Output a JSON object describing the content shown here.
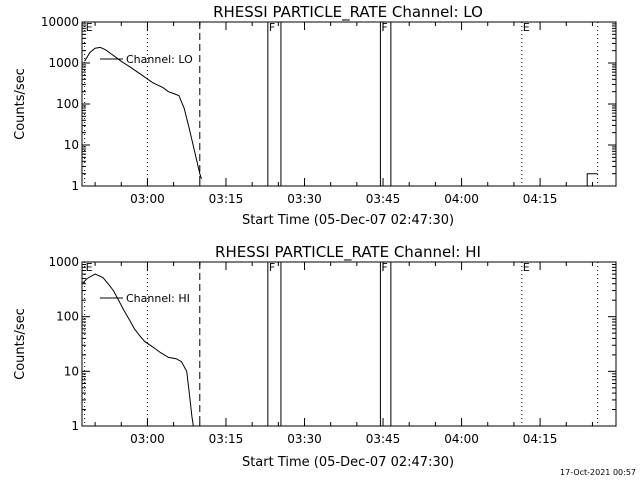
{
  "chart_data": [
    {
      "type": "line",
      "title": "RHESSI PARTICLE_RATE Channel: LO",
      "xlabel": "Start Time (05-Dec-07 02:47:30)",
      "ylabel": "Counts/sec",
      "yscale": "log",
      "ylim": [
        1,
        10000
      ],
      "xlim": [
        "02:47:30",
        "04:29:30"
      ],
      "x_ticks": [
        "03:00",
        "03:15",
        "03:30",
        "03:45",
        "04:00",
        "04:15"
      ],
      "y_ticks": [
        "1",
        "10",
        "100",
        "1000",
        "10000"
      ],
      "legend": "Channel: LO",
      "legend_position": "top-left",
      "series": [
        {
          "name": "Channel: LO",
          "x": [
            "02:48:00",
            "02:49:00",
            "02:50:00",
            "02:51:00",
            "02:52:00",
            "02:53:00",
            "02:55:00",
            "02:57:00",
            "02:59:00",
            "03:01:00",
            "03:03:00",
            "03:04:00",
            "03:05:00",
            "03:06:00",
            "03:07:00",
            "03:08:00",
            "03:09:00",
            "03:10:00",
            "03:10:20"
          ],
          "y": [
            1100,
            1800,
            2300,
            2400,
            2100,
            1700,
            1100,
            750,
            500,
            330,
            250,
            200,
            180,
            160,
            80,
            25,
            7,
            2,
            1.5
          ]
        },
        {
          "name": "",
          "x": [
            "04:24:00",
            "04:24:00",
            "04:26:00"
          ],
          "y": [
            1,
            2,
            2
          ]
        }
      ],
      "markers": [
        {
          "label": "E",
          "time": "02:48:00",
          "style": "dotted"
        },
        {
          "label": "",
          "time": "03:00:00",
          "style": "dotted"
        },
        {
          "label": "",
          "time": "03:10:00",
          "style": "dashed"
        },
        {
          "label": "F",
          "time": "03:23:00",
          "style": "solid"
        },
        {
          "label": "",
          "time": "03:25:30",
          "style": "solid"
        },
        {
          "label": "F",
          "time": "03:44:30",
          "style": "solid"
        },
        {
          "label": "",
          "time": "03:46:30",
          "style": "solid"
        },
        {
          "label": "E",
          "time": "04:11:30",
          "style": "dotted"
        },
        {
          "label": "",
          "time": "04:26:00",
          "style": "dotted"
        }
      ]
    },
    {
      "type": "line",
      "title": "RHESSI PARTICLE_RATE Channel: HI",
      "xlabel": "Start Time (05-Dec-07 02:47:30)",
      "ylabel": "Counts/sec",
      "yscale": "log",
      "ylim": [
        1,
        1000
      ],
      "xlim": [
        "02:47:30",
        "04:29:30"
      ],
      "x_ticks": [
        "03:00",
        "03:15",
        "03:30",
        "03:45",
        "04:00",
        "04:15"
      ],
      "y_ticks": [
        "1",
        "10",
        "100",
        "1000"
      ],
      "legend": "Channel: HI",
      "legend_position": "top-left",
      "series": [
        {
          "name": "Channel: HI",
          "x": [
            "02:47:30",
            "02:48:30",
            "02:50:00",
            "02:51:30",
            "02:52:30",
            "02:53:30",
            "02:54:30",
            "02:55:30",
            "02:56:30",
            "02:57:30",
            "02:58:30",
            "02:59:30",
            "03:01:00",
            "03:02:30",
            "03:04:00",
            "03:05:30",
            "03:06:30",
            "03:07:30",
            "03:08:00",
            "03:08:30",
            "03:08:45"
          ],
          "y": [
            400,
            500,
            600,
            520,
            400,
            300,
            200,
            130,
            90,
            60,
            45,
            35,
            28,
            22,
            18,
            17,
            15,
            10,
            4,
            1.5,
            1
          ]
        }
      ],
      "markers": [
        {
          "label": "E",
          "time": "02:48:00",
          "style": "dotted"
        },
        {
          "label": "",
          "time": "03:00:00",
          "style": "dotted"
        },
        {
          "label": "",
          "time": "03:10:00",
          "style": "dashed"
        },
        {
          "label": "F",
          "time": "03:23:00",
          "style": "solid"
        },
        {
          "label": "",
          "time": "03:25:30",
          "style": "solid"
        },
        {
          "label": "F",
          "time": "03:44:30",
          "style": "solid"
        },
        {
          "label": "",
          "time": "03:46:30",
          "style": "solid"
        },
        {
          "label": "E",
          "time": "04:11:30",
          "style": "dotted"
        },
        {
          "label": "",
          "time": "04:26:00",
          "style": "dotted"
        }
      ]
    }
  ],
  "timestamp": "17-Oct-2021 00:57"
}
